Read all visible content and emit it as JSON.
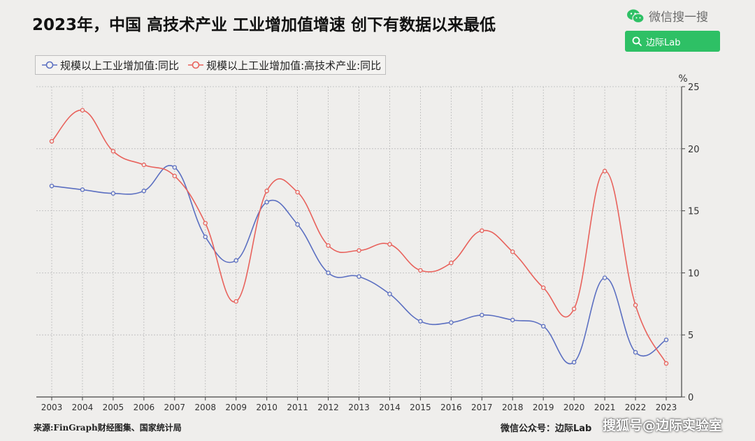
{
  "header": {
    "title": "2023年，中国 高技术产业 工业增加值增速 创下有数据以来最低"
  },
  "wechat": {
    "brand_label": "微信搜一搜",
    "search_label": "边际Lab",
    "icon": "wechat-icon",
    "search_icon": "search-icon",
    "accent_color": "#2ec065"
  },
  "chart_data": {
    "type": "line",
    "title": "2023年，中国 高技术产业 工业增加值增速 创下有数据以来最低",
    "ylabel": "%",
    "xlabel": "",
    "x": [
      "2003",
      "2004",
      "2005",
      "2006",
      "2007",
      "2008",
      "2009",
      "2010",
      "2011",
      "2012",
      "2013",
      "2014",
      "2015",
      "2016",
      "2017",
      "2018",
      "2019",
      "2020",
      "2021",
      "2022",
      "2023"
    ],
    "ylim": [
      0,
      25
    ],
    "yticks": [
      0,
      5,
      10,
      15,
      20,
      25
    ],
    "y_axis_side": "right",
    "grid": true,
    "legend_position": "top-left",
    "series": [
      {
        "name": "规模以上工业增加值:同比",
        "color": "#5b6fc1",
        "values": [
          17.0,
          16.7,
          16.4,
          16.6,
          18.5,
          12.9,
          11.0,
          15.7,
          13.9,
          10.0,
          9.7,
          8.3,
          6.1,
          6.0,
          6.6,
          6.2,
          5.7,
          2.8,
          9.6,
          3.6,
          4.6
        ]
      },
      {
        "name": "规模以上工业增加值:高技术产业:同比",
        "color": "#e8625c",
        "values": [
          20.6,
          23.1,
          19.8,
          18.7,
          17.8,
          14.0,
          7.7,
          16.6,
          16.5,
          12.2,
          11.8,
          12.3,
          10.2,
          10.8,
          13.4,
          11.7,
          8.8,
          7.1,
          18.2,
          7.4,
          2.7
        ]
      }
    ]
  },
  "footer": {
    "source": "来源:FinGraph财经图集、国家统计局",
    "account": "微信公众号：边际Lab",
    "watermark": "搜狐号@边际实验室"
  }
}
